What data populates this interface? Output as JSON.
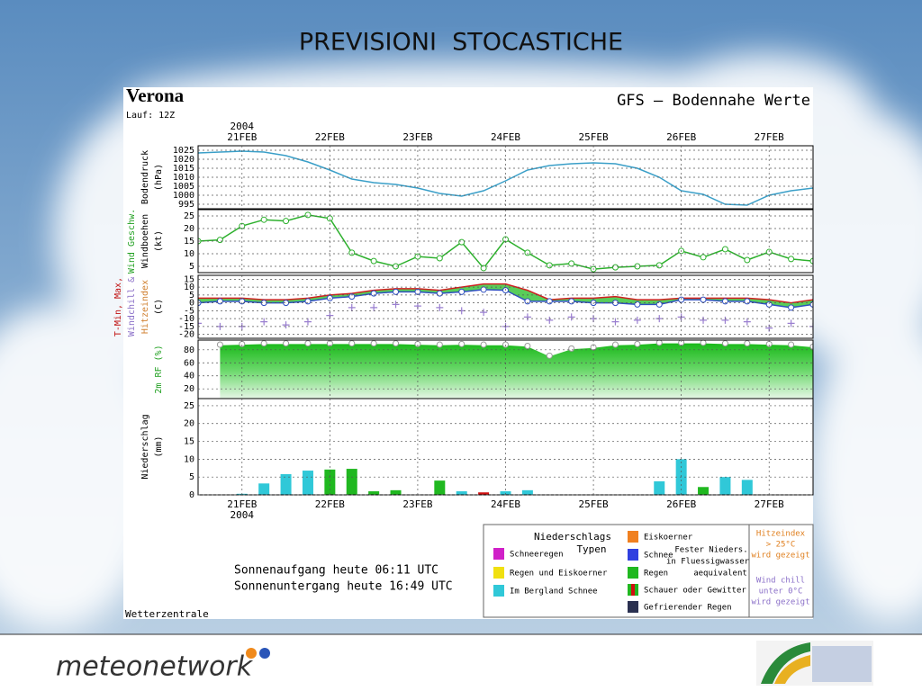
{
  "slide": {
    "title": "PREVISIONI  STOCASTICHE",
    "brand": "meteonetwork"
  },
  "header": {
    "place": "Verona",
    "run": "Lauf: 12Z",
    "model": "GFS — Bodennahe Werte",
    "credit": "Wetterzentrale",
    "sun": [
      "Sonnenaufgang heute 06:11 UTC",
      "Sonnenuntergang heute 16:49 UTC"
    ]
  },
  "legend": {
    "title": [
      "Niederschlags",
      "Typen"
    ],
    "entries": [
      {
        "label": "Schneeregen",
        "color": "#d020c8"
      },
      {
        "label": "Regen und Eiskoerner",
        "color": "#f0e010"
      },
      {
        "label": "Im Bergland Schnee",
        "color": "#30c8d8"
      },
      {
        "label": "Eiskoerner",
        "color": "#f08020"
      },
      {
        "label": "Schnee",
        "color": "#3040e0"
      },
      {
        "label": "Regen",
        "color": "#20b820"
      },
      {
        "label": "Schauer oder Gewitter",
        "color": "#20b820"
      },
      {
        "label": "Gefrierender Regen",
        "color": "#2a3050"
      }
    ],
    "note": [
      "Fester Nieders.",
      "in Fluessigwasser",
      "aequivalent"
    ],
    "heat": [
      "Hitzeindex",
      "> 25°C",
      "wird gezeigt"
    ],
    "chill": [
      "Wind chill",
      "unter 0°C",
      "wird gezeigt"
    ]
  },
  "chart_data": [
    {
      "type": "line",
      "year": "2004",
      "categories": [
        null,
        null,
        "21FEB",
        null,
        null,
        null,
        "22FEB",
        null,
        null,
        null,
        "23FEB",
        null,
        null,
        null,
        "24FEB",
        null,
        null,
        null,
        "25FEB",
        null,
        null,
        null,
        "26FEB",
        null,
        null,
        null,
        "27FEB",
        null,
        null
      ],
      "ylabel": [
        "Bodendruck",
        "(hPa)"
      ],
      "ylabel_colors": [
        "#000",
        "#000"
      ],
      "ylim": [
        992.5,
        1027.5
      ],
      "yticks": [
        1025,
        1020,
        1015,
        1010,
        1005,
        1000,
        995
      ],
      "grid": true,
      "series": [
        {
          "color": "#3a9fc8",
          "marker": "none",
          "values": [
            1023.5,
            1024,
            1024.5,
            1024,
            1022,
            1018.5,
            1014,
            1009,
            1007,
            1006,
            1004,
            1001,
            999.5,
            1002.5,
            1008,
            1014,
            1016.5,
            1017.5,
            1018,
            1017.5,
            1015,
            1010,
            1002.5,
            1000.5,
            995,
            994.5,
            1000,
            1002.5,
            1004
          ]
        }
      ]
    },
    {
      "type": "line",
      "ylabel": [
        "Wind Geschw.",
        "Windboehen",
        "(kt)"
      ],
      "ylabel_colors": [
        "#20a020",
        "#000",
        "#000"
      ],
      "ylim": [
        2.5,
        27.5
      ],
      "yticks": [
        25,
        20,
        15,
        10,
        5
      ],
      "grid": true,
      "series": [
        {
          "color": "#2db02d",
          "marker": "circle",
          "values": [
            15,
            15.5,
            21,
            23.5,
            23,
            25.4,
            24,
            10.4,
            7.1,
            5,
            8.9,
            8.2,
            14.6,
            4.3,
            15.7,
            10.4,
            5.4,
            6.1,
            3.9,
            4.6,
            5,
            5.4,
            11.1,
            8.6,
            11.8,
            7.5,
            10.7,
            7.9,
            7.1
          ]
        }
      ]
    },
    {
      "type": "line",
      "fill_between": "#30c030",
      "ylabel": [
        "T-Min, Max,",
        "Windchill &",
        "Hitzeindex",
        "(C)"
      ],
      "ylabel_colors": [
        "#c01010",
        "#8a6fc8",
        "#d08030",
        "#000"
      ],
      "ylim": [
        -22.5,
        17.5
      ],
      "yticks": [
        15,
        10,
        5,
        0,
        -5,
        -10,
        -15,
        -20
      ],
      "grid": true,
      "series": [
        {
          "color": "#d02020",
          "marker": "none",
          "values": [
            3,
            3,
            3,
            2,
            2,
            3,
            5,
            6,
            8,
            9,
            9,
            8,
            10,
            12,
            12,
            8,
            2,
            3,
            3,
            4,
            2,
            2,
            3,
            3,
            3,
            3,
            2,
            0,
            2
          ]
        },
        {
          "color": "#3050c0",
          "marker": "circle",
          "values": [
            0,
            1,
            1,
            0,
            0,
            1,
            3,
            4,
            6,
            7,
            7,
            6,
            7,
            8.4,
            8,
            1,
            1,
            1,
            0,
            0,
            -1,
            -1,
            2,
            2,
            1,
            1,
            -1,
            -3,
            -1
          ]
        },
        {
          "color": "#9a7fd0",
          "marker": "cross",
          "values": [
            -13,
            -15,
            -15,
            -12,
            -14,
            -12,
            -8,
            -3,
            -3,
            -1,
            -2,
            -3,
            -5,
            -6,
            -15,
            -9,
            -11,
            -9,
            -10,
            -12,
            -11,
            -10,
            -9,
            -11,
            -11,
            -12,
            -16,
            -13,
            -15
          ]
        }
      ]
    },
    {
      "type": "area",
      "ylabel": [
        "2m RF (%)"
      ],
      "ylabel_colors": [
        "#20a020"
      ],
      "ylim": [
        5,
        95
      ],
      "yticks": [
        80,
        60,
        40,
        20
      ],
      "grid": true,
      "series": [
        {
          "color": "#ffffff",
          "fill": "#20c020",
          "marker": "circle",
          "values": [
            null,
            88,
            89,
            90,
            90,
            90,
            90,
            90,
            90,
            90,
            89,
            88,
            89,
            88,
            88,
            86,
            71,
            82,
            84,
            88,
            89,
            91,
            91,
            91,
            90,
            90,
            89,
            88,
            85
          ]
        }
      ]
    },
    {
      "type": "bar",
      "year": "2004",
      "ylabel": [
        "Niederschlag",
        "(mm)"
      ],
      "ylabel_colors": [
        "#000",
        "#000"
      ],
      "ylim": [
        0,
        27
      ],
      "yticks": [
        25,
        20,
        15,
        10,
        5,
        0
      ],
      "grid": true,
      "values": [
        null,
        0.1,
        0.3,
        3.2,
        5.8,
        6.8,
        7.1,
        7.3,
        1.0,
        1.3,
        null,
        4.0,
        1.0,
        0.7,
        1.0,
        1.3,
        null,
        null,
        null,
        null,
        null,
        3.8,
        10.0,
        2.2,
        5.0,
        4.2,
        null,
        null,
        null
      ],
      "colors": [
        null,
        "#30c8d8",
        "#30c8d8",
        "#30c8d8",
        "#30c8d8",
        "#30c8d8",
        "#20b820",
        "#20b820",
        "#20b820",
        "#20b820",
        null,
        "#20b820",
        "#30c8d8",
        "#d01010",
        "#30c8d8",
        "#30c8d8",
        null,
        null,
        null,
        null,
        null,
        "#30c8d8",
        "#30c8d8",
        "#20b820",
        "#30c8d8",
        "#30c8d8",
        null,
        null,
        null
      ]
    }
  ]
}
